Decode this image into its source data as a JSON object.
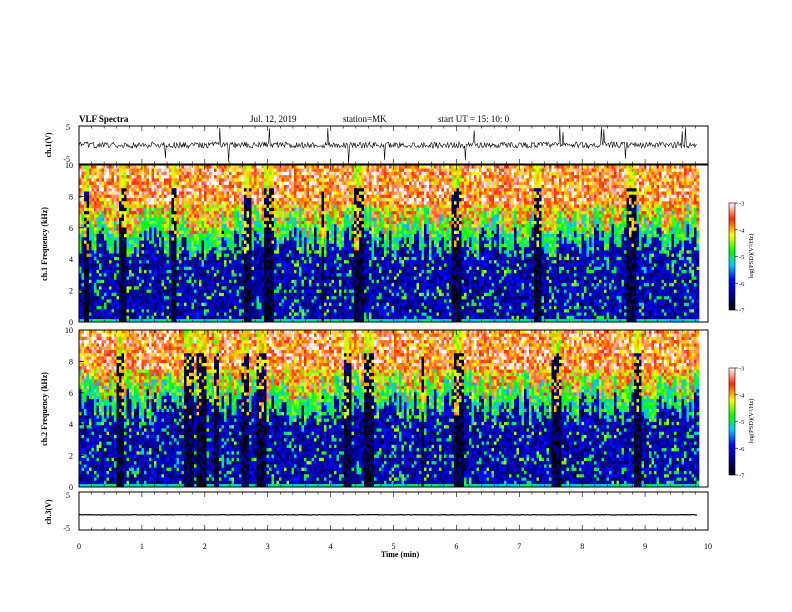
{
  "header": {
    "title": "VLF Spectra",
    "date": "Jul. 12, 2019",
    "station": "station=MK",
    "start": "start UT =  15: 10: 0"
  },
  "chart_data": [
    {
      "type": "line",
      "name": "ch1-waveform",
      "ylabel": "ch.1(V)",
      "ylim": [
        -5,
        5
      ],
      "yticks": [
        "5",
        "-5"
      ],
      "xlim": [
        0,
        10
      ],
      "note_values": {
        "baseline": 0,
        "noise_amplitude": 1,
        "spike_amplitude": 5
      }
    },
    {
      "type": "heatmap",
      "name": "ch1-spectrogram",
      "ylabel": "ch.1 Frequency (kHz)",
      "ylim": [
        0,
        10
      ],
      "yticks": [
        "0",
        "2",
        "4",
        "6",
        "8",
        "10"
      ],
      "xlim": [
        0,
        10
      ],
      "data_end_min": 9.83,
      "colorbar": {
        "label": "log(PSD)(V²/Hz)",
        "range": [
          -7,
          -3
        ],
        "ticks": [
          "-3",
          "-4",
          "-5",
          "-6",
          "-7"
        ]
      }
    },
    {
      "type": "heatmap",
      "name": "ch2-spectrogram",
      "ylabel": "ch.2 Frequency (kHz)",
      "ylim": [
        0,
        10
      ],
      "yticks": [
        "0",
        "2",
        "4",
        "6",
        "8",
        "10"
      ],
      "xlim": [
        0,
        10
      ],
      "data_end_min": 9.83,
      "colorbar": {
        "label": "log(PSD)(V²/Hz)",
        "range": [
          -7,
          -3
        ],
        "ticks": [
          "-3",
          "-4",
          "-5",
          "-6",
          "-7"
        ]
      }
    },
    {
      "type": "line",
      "name": "ch3-waveform",
      "ylabel": "ch.3(V)",
      "ylim": [
        -5,
        5
      ],
      "yticks": [
        "5",
        "-5"
      ],
      "xlim": [
        0,
        10
      ],
      "note_values": {
        "baseline": -1
      }
    }
  ],
  "xaxis": {
    "label": "Time (min)",
    "ticks": [
      "0",
      "1",
      "2",
      "3",
      "4",
      "5",
      "6",
      "7",
      "8",
      "9",
      "10"
    ]
  }
}
